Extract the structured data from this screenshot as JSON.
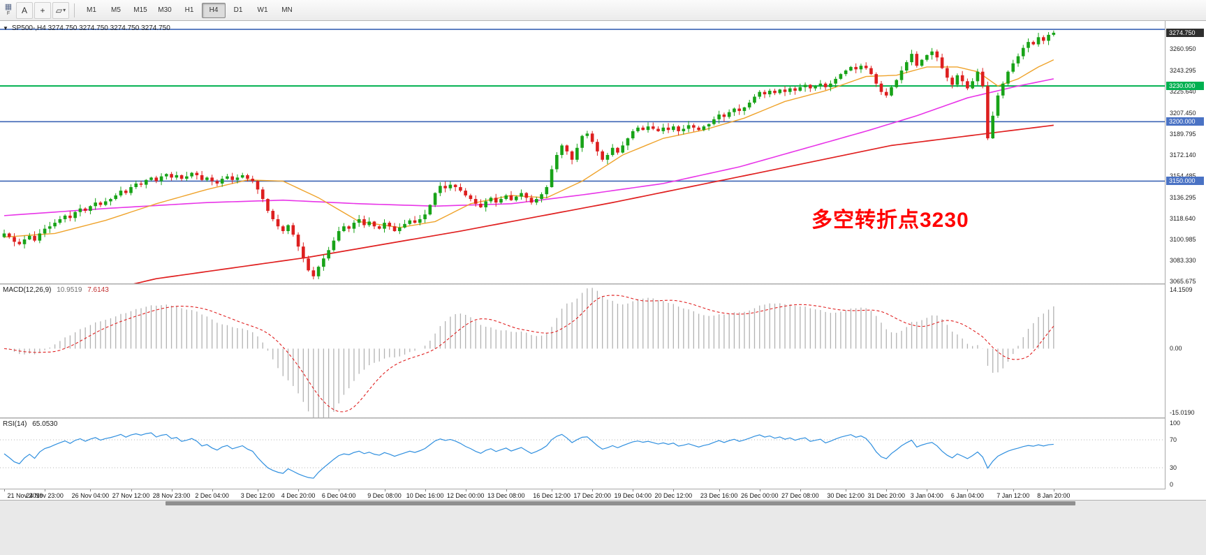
{
  "toolbar": {
    "icons": {
      "grid": "▦",
      "flag": "F",
      "text": "A",
      "crosshair": "+",
      "shapes": "▱",
      "caret": "▾"
    },
    "timeframes": [
      "M1",
      "M5",
      "M15",
      "M30",
      "H1",
      "H4",
      "D1",
      "W1",
      "MN"
    ],
    "active_timeframe": "H4"
  },
  "chart": {
    "collapse_glyph": "▼",
    "header": "SP500-,H4  3274.750 3274.750 3274.750 3274.750"
  },
  "chart_data": {
    "type": "candlestick",
    "symbol": "SP500-",
    "timeframe": "H4",
    "current_ohlc": {
      "open": "3274.750",
      "high": "3274.750",
      "low": "3274.750",
      "close": "3274.750"
    },
    "closes": [
      3106,
      3103,
      3099,
      3097,
      3101,
      3104,
      3100,
      3106,
      3110,
      3112,
      3115,
      3118,
      3121,
      3119,
      3124,
      3127,
      3125,
      3129,
      3132,
      3130,
      3133,
      3135,
      3138,
      3142,
      3140,
      3145,
      3148,
      3147,
      3151,
      3153,
      3150,
      3154,
      3156,
      3153,
      3155,
      3152,
      3154,
      3157,
      3155,
      3151,
      3153,
      3150,
      3148,
      3152,
      3154,
      3151,
      3153,
      3155,
      3152,
      3150,
      3143,
      3135,
      3125,
      3118,
      3112,
      3108,
      3113,
      3105,
      3095,
      3085,
      3075,
      3070,
      3078,
      3085,
      3092,
      3100,
      3108,
      3112,
      3110,
      3115,
      3118,
      3113,
      3116,
      3112,
      3110,
      3115,
      3112,
      3108,
      3111,
      3114,
      3117,
      3115,
      3118,
      3122,
      3130,
      3140,
      3146,
      3144,
      3147,
      3145,
      3142,
      3138,
      3135,
      3131,
      3128,
      3133,
      3136,
      3132,
      3135,
      3138,
      3134,
      3137,
      3140,
      3136,
      3132,
      3135,
      3139,
      3145,
      3160,
      3172,
      3180,
      3175,
      3168,
      3178,
      3188,
      3190,
      3183,
      3175,
      3168,
      3172,
      3178,
      3174,
      3180,
      3186,
      3192,
      3195,
      3193,
      3196,
      3194,
      3192,
      3195,
      3193,
      3196,
      3192,
      3194,
      3197,
      3195,
      3193,
      3196,
      3198,
      3202,
      3206,
      3204,
      3208,
      3211,
      3209,
      3212,
      3216,
      3221,
      3225,
      3223,
      3226,
      3224,
      3227,
      3225,
      3228,
      3226,
      3229,
      3231,
      3228,
      3230,
      3232,
      3229,
      3232,
      3236,
      3240,
      3243,
      3246,
      3244,
      3247,
      3245,
      3240,
      3232,
      3225,
      3222,
      3229,
      3235,
      3243,
      3250,
      3257,
      3247,
      3252,
      3256,
      3259,
      3254,
      3245,
      3237,
      3231,
      3239,
      3234,
      3228,
      3234,
      3242,
      3230,
      3186,
      3205,
      3222,
      3232,
      3242,
      3249,
      3255,
      3262,
      3267,
      3265,
      3271,
      3268,
      3273,
      3274.75
    ],
    "price_axis": {
      "current_tag": "3274.750",
      "labels": [
        "3260.950",
        "3243.295",
        "3225.640",
        "3207.450",
        "3189.795",
        "3172.140",
        "3154.485",
        "3136.295",
        "3118.640",
        "3100.985",
        "3083.330",
        "3065.675"
      ]
    },
    "hlines": [
      {
        "value": 3277.6,
        "color": "#3c64b4",
        "width": 1.6,
        "tag": "",
        "tag_bg": ""
      },
      {
        "value": 3230.0,
        "color": "#00b050",
        "width": 2,
        "tag": "3230.000",
        "tag_bg": "#00b050"
      },
      {
        "value": 3200.0,
        "color": "#3c64b4",
        "width": 1.6,
        "tag": "3200.000",
        "tag_bg": "#4a72c4"
      },
      {
        "value": 3150.0,
        "color": "#3c64b4",
        "width": 1.6,
        "tag": "3150.000",
        "tag_bg": "#4a72c4"
      }
    ],
    "ma_orange_anchors": [
      [
        0,
        3103
      ],
      [
        10,
        3106
      ],
      [
        20,
        3117
      ],
      [
        30,
        3131
      ],
      [
        40,
        3143
      ],
      [
        48,
        3151
      ],
      [
        55,
        3150
      ],
      [
        62,
        3136
      ],
      [
        70,
        3116
      ],
      [
        78,
        3111
      ],
      [
        85,
        3116
      ],
      [
        92,
        3131
      ],
      [
        100,
        3138
      ],
      [
        107,
        3136
      ],
      [
        114,
        3150
      ],
      [
        122,
        3172
      ],
      [
        130,
        3186
      ],
      [
        138,
        3193
      ],
      [
        146,
        3203
      ],
      [
        154,
        3217
      ],
      [
        162,
        3226
      ],
      [
        170,
        3238
      ],
      [
        176,
        3239
      ],
      [
        182,
        3246
      ],
      [
        188,
        3246
      ],
      [
        192,
        3242
      ],
      [
        196,
        3230
      ],
      [
        200,
        3236
      ],
      [
        204,
        3246
      ],
      [
        207,
        3252
      ]
    ],
    "ma_magenta_anchors": [
      [
        0,
        3121
      ],
      [
        20,
        3127
      ],
      [
        40,
        3132
      ],
      [
        55,
        3134
      ],
      [
        70,
        3131
      ],
      [
        85,
        3129
      ],
      [
        100,
        3131
      ],
      [
        115,
        3139
      ],
      [
        130,
        3148
      ],
      [
        145,
        3162
      ],
      [
        160,
        3180
      ],
      [
        170,
        3192
      ],
      [
        180,
        3205
      ],
      [
        190,
        3220
      ],
      [
        200,
        3230
      ],
      [
        207,
        3236
      ]
    ],
    "ma_red_anchors": [
      [
        0,
        3038
      ],
      [
        30,
        3068
      ],
      [
        60,
        3086
      ],
      [
        90,
        3108
      ],
      [
        120,
        3132
      ],
      [
        150,
        3158
      ],
      [
        175,
        3180
      ],
      [
        207,
        3197
      ]
    ],
    "annotation": {
      "text": "多空转折点3230",
      "color": "#ff0000"
    },
    "macd": {
      "label": "MACD(12,26,9)",
      "main_value": "10.9519",
      "signal_value": "7.6143",
      "params": [
        12,
        26,
        9
      ],
      "axis": [
        "14.1509",
        "0.00",
        "-15.0190"
      ]
    },
    "rsi": {
      "label": "RSI(14)",
      "value": "65.0530",
      "period": 14,
      "axis": [
        "100",
        "70",
        "30",
        "0"
      ],
      "levels": [
        70,
        30
      ]
    },
    "time_labels": [
      "21 Nov 2019",
      "24 Nov 23:00",
      "26 Nov 04:00",
      "27 Nov 12:00",
      "28 Nov 23:00",
      "2 Dec 04:00",
      "3 Dec 12:00",
      "4 Dec 20:00",
      "6 Dec 04:00",
      "9 Dec 08:00",
      "10 Dec 16:00",
      "12 Dec 00:00",
      "13 Dec 08:00",
      "16 Dec 12:00",
      "17 Dec 20:00",
      "19 Dec 04:00",
      "20 Dec 12:00",
      "23 Dec 16:00",
      "26 Dec 00:00",
      "27 Dec 08:00",
      "30 Dec 12:00",
      "31 Dec 20:00",
      "3 Jan 04:00",
      "6 Jan 04:00",
      "7 Jan 12:00",
      "8 Jan 20:00"
    ]
  },
  "colors": {
    "candle_up": "#18a318",
    "candle_down": "#dd1f1f",
    "ma_orange": "#efa32b",
    "ma_magenta": "#e835e8",
    "ma_red": "#e02020",
    "macd_hist": "#b2b2b2",
    "macd_signal": "#e02020",
    "rsi_line": "#2f8fdf",
    "tag_current_bg": "#2e2e2e"
  }
}
